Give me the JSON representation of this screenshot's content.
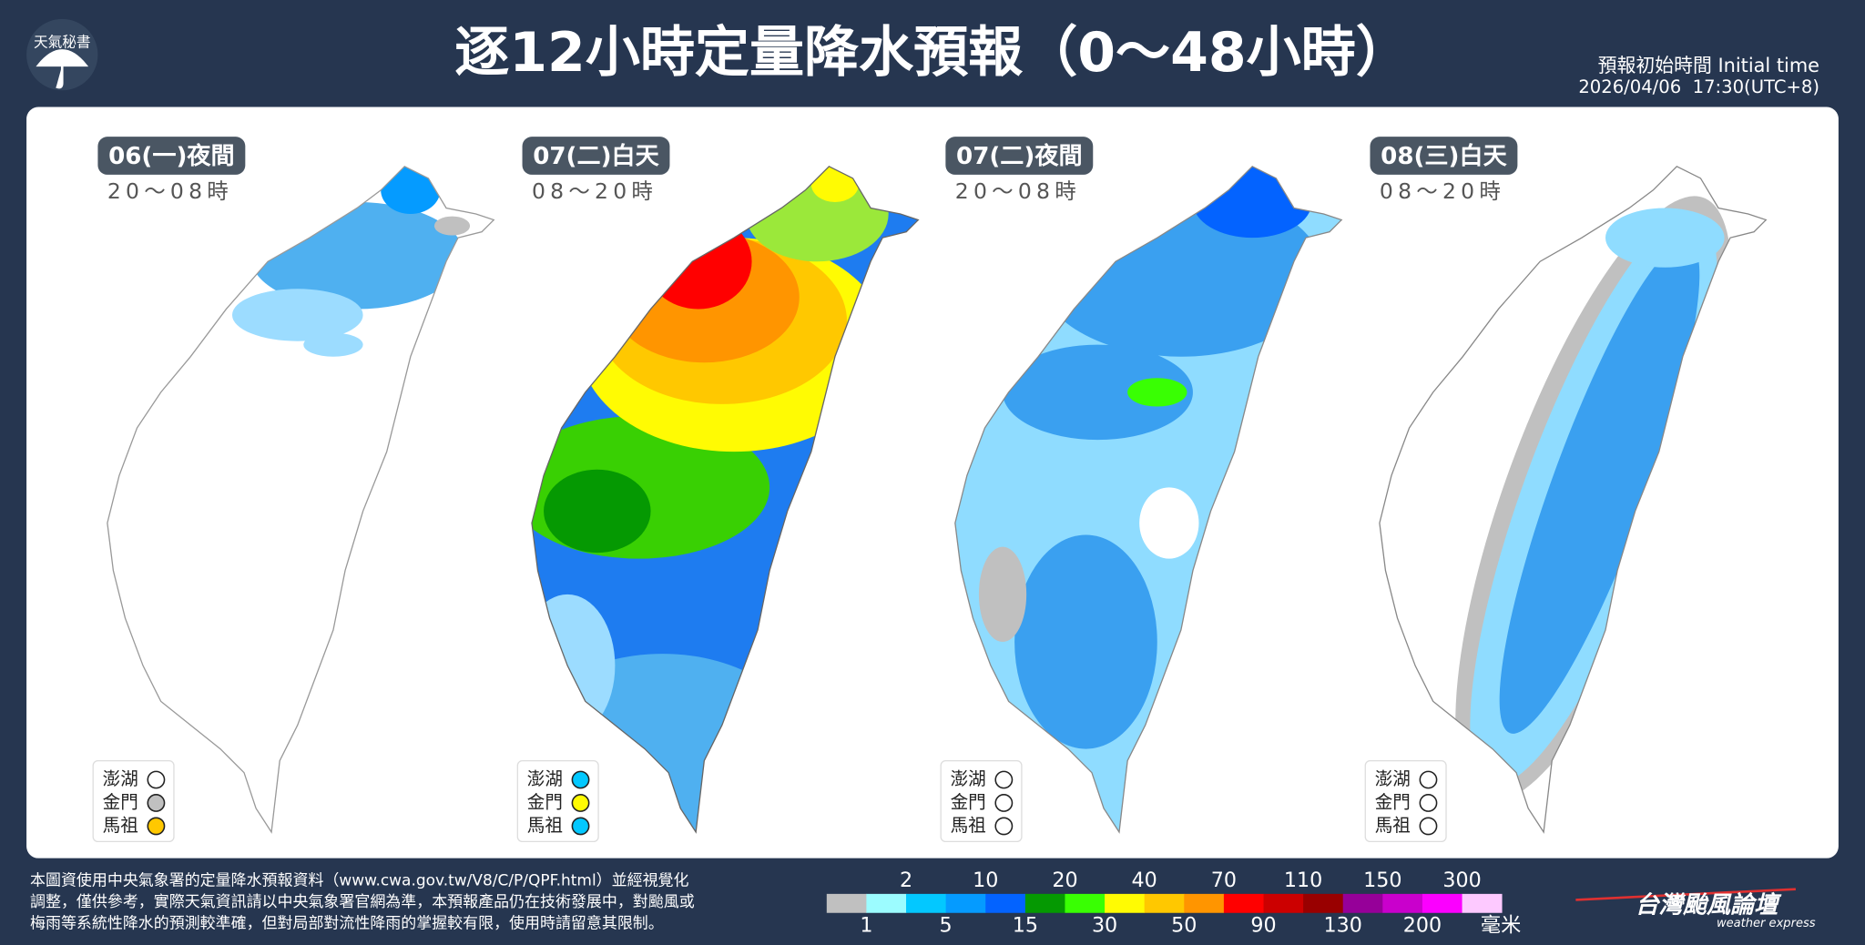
{
  "header": {
    "logo": "天氣秘書",
    "title": "逐12小時定量降水預報（0～48小時）",
    "initial_time_label": "預報初始時間 Initial time",
    "initial_time": "2026/04/06  17:30(UTC+8)"
  },
  "panels": [
    {
      "day": "06(一)夜間",
      "hours": "20～08時",
      "islands": [
        {
          "name": "澎湖",
          "color": "#ffffff"
        },
        {
          "name": "金門",
          "color": "#c0c0c0"
        },
        {
          "name": "馬祖",
          "color": "#ffc800"
        }
      ]
    },
    {
      "day": "07(二)白天",
      "hours": "08～20時",
      "islands": [
        {
          "name": "澎湖",
          "color": "#03c8ff"
        },
        {
          "name": "金門",
          "color": "#fffb03"
        },
        {
          "name": "馬祖",
          "color": "#03c8ff"
        }
      ]
    },
    {
      "day": "07(二)夜間",
      "hours": "20～08時",
      "islands": [
        {
          "name": "澎湖",
          "color": "#ffffff"
        },
        {
          "name": "金門",
          "color": "#ffffff"
        },
        {
          "name": "馬祖",
          "color": "#ffffff"
        }
      ]
    },
    {
      "day": "08(三)白天",
      "hours": "08～20時",
      "islands": [
        {
          "name": "澎湖",
          "color": "#ffffff"
        },
        {
          "name": "金門",
          "color": "#ffffff"
        },
        {
          "name": "馬祖",
          "color": "#ffffff"
        }
      ]
    }
  ],
  "footer": {
    "note": [
      "本圖資使用中央氣象署的定量降水預報資料（www.cwa.gov.tw/V8/C/P/QPF.html）並經視覺化",
      "調整，僅供參考，實際天氣資訊請以中央氣象署官網為準，本預報產品仍在技術發展中，對颱風或",
      "梅雨等系統性降水的預測較準確，但對局部對流性降雨的掌握較有限，使用時請留意其限制。"
    ],
    "brand": "台灣颱風論壇",
    "brand_sub": "weather express"
  },
  "legend": {
    "levels": [
      1,
      2,
      5,
      10,
      15,
      20,
      30,
      40,
      50,
      70,
      90,
      110,
      130,
      150,
      200,
      300
    ],
    "colors": [
      "#c0c0c0",
      "#9cfcff",
      "#03c8ff",
      "#059bff",
      "#0363ff",
      "#059902",
      "#39ff03",
      "#fffb03",
      "#ffc800",
      "#ff9500",
      "#ff0000",
      "#cc0000",
      "#990000",
      "#960099",
      "#c900cc",
      "#fb00ff",
      "#fdc9ff"
    ],
    "unit": "毫米"
  }
}
